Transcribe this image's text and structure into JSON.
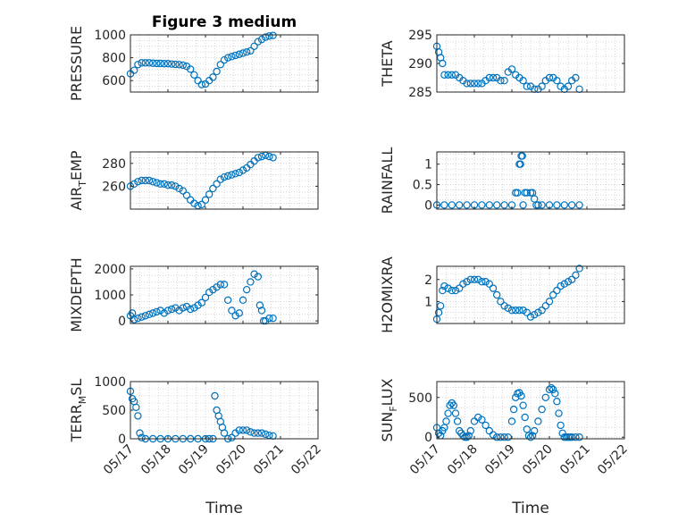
{
  "figure": {
    "title": "Figure 3 medium",
    "xlabel": "Time",
    "x_tick_labels": [
      "05/17",
      "05/18",
      "05/19",
      "05/20",
      "05/21",
      "05/22"
    ]
  },
  "chart_data": [
    {
      "type": "scatter",
      "marker": "o",
      "color": "#0072BD",
      "ylabel_main": "PRESSURE",
      "ylabel_sub": "",
      "ylabel_tail": "",
      "ylim": [
        500,
        1000
      ],
      "yticks": [
        600,
        800,
        1000
      ],
      "xlim": [
        0,
        5
      ],
      "grid": true,
      "x": [
        0.0,
        0.1,
        0.2,
        0.3,
        0.4,
        0.5,
        0.6,
        0.7,
        0.8,
        0.9,
        1.0,
        1.1,
        1.2,
        1.3,
        1.4,
        1.5,
        1.6,
        1.7,
        1.8,
        1.9,
        2.0,
        2.1,
        2.2,
        2.3,
        2.4,
        2.5,
        2.6,
        2.7,
        2.8,
        2.9,
        3.0,
        3.1,
        3.2,
        3.3,
        3.4,
        3.5,
        3.6,
        3.7,
        3.8
      ],
      "y": [
        660,
        690,
        740,
        755,
        755,
        755,
        752,
        750,
        750,
        748,
        748,
        745,
        742,
        740,
        735,
        725,
        700,
        650,
        600,
        565,
        570,
        600,
        630,
        680,
        740,
        780,
        800,
        810,
        820,
        830,
        840,
        850,
        860,
        900,
        940,
        960,
        980,
        990,
        995
      ]
    },
    {
      "type": "scatter",
      "marker": "o",
      "color": "#0072BD",
      "ylabel_main": "THETA",
      "ylabel_sub": "",
      "ylabel_tail": "",
      "ylim": [
        285,
        295
      ],
      "yticks": [
        285,
        290,
        295
      ],
      "xlim": [
        0,
        5
      ],
      "grid": true,
      "x": [
        0.0,
        0.05,
        0.1,
        0.15,
        0.2,
        0.3,
        0.4,
        0.5,
        0.6,
        0.7,
        0.8,
        0.9,
        1.0,
        1.1,
        1.2,
        1.3,
        1.4,
        1.5,
        1.6,
        1.7,
        1.8,
        1.9,
        2.0,
        2.1,
        2.2,
        2.3,
        2.4,
        2.5,
        2.6,
        2.7,
        2.8,
        2.9,
        3.0,
        3.1,
        3.2,
        3.3,
        3.4,
        3.5,
        3.6,
        3.7,
        3.8
      ],
      "y": [
        293,
        292,
        291,
        290,
        288,
        288,
        288,
        288,
        287.5,
        287,
        286.5,
        286.5,
        286.5,
        286.5,
        286.5,
        287,
        287.5,
        287.5,
        287.5,
        287,
        287,
        288.5,
        289,
        288,
        287.5,
        287,
        286,
        286,
        285.5,
        285.5,
        286,
        287,
        287.5,
        287.5,
        287,
        286,
        285.5,
        286,
        287,
        287.5,
        285.5
      ]
    },
    {
      "type": "scatter",
      "marker": "o",
      "color": "#0072BD",
      "ylabel_main": "AIR",
      "ylabel_sub": "T",
      "ylabel_tail": "EMP",
      "ylim": [
        240,
        290
      ],
      "yticks": [
        260,
        280
      ],
      "xlim": [
        0,
        5
      ],
      "grid": true,
      "x": [
        0.0,
        0.1,
        0.2,
        0.3,
        0.4,
        0.5,
        0.6,
        0.7,
        0.8,
        0.9,
        1.0,
        1.1,
        1.2,
        1.3,
        1.4,
        1.5,
        1.6,
        1.7,
        1.8,
        1.9,
        2.0,
        2.1,
        2.2,
        2.3,
        2.4,
        2.5,
        2.6,
        2.7,
        2.8,
        2.9,
        3.0,
        3.1,
        3.2,
        3.3,
        3.4,
        3.5,
        3.6,
        3.7,
        3.8
      ],
      "y": [
        260,
        262,
        264,
        265,
        265,
        265,
        264,
        263,
        262,
        262,
        261,
        261,
        260,
        258,
        256,
        252,
        248,
        245,
        243,
        244,
        248,
        253,
        258,
        262,
        266,
        268,
        269,
        270,
        271,
        272,
        274,
        276,
        279,
        282,
        285,
        286,
        287,
        286,
        285
      ]
    },
    {
      "type": "scatter",
      "marker": "o",
      "color": "#0072BD",
      "ylabel_main": "RAINFALL",
      "ylabel_sub": "",
      "ylabel_tail": "",
      "ylim": [
        -0.1,
        1.3
      ],
      "yticks": [
        0,
        0.5,
        1
      ],
      "xlim": [
        0,
        5
      ],
      "grid": true,
      "x": [
        0.0,
        0.2,
        0.4,
        0.6,
        0.8,
        1.0,
        1.2,
        1.4,
        1.6,
        1.8,
        2.0,
        2.1,
        2.15,
        2.2,
        2.23,
        2.25,
        2.28,
        2.3,
        2.35,
        2.4,
        2.5,
        2.55,
        2.6,
        2.65,
        2.7,
        2.8,
        3.0,
        3.2,
        3.4,
        3.6,
        3.8
      ],
      "y": [
        0,
        0,
        0,
        0,
        0,
        0,
        0,
        0,
        0,
        0,
        0,
        0.3,
        0.3,
        1,
        1,
        1.2,
        1.2,
        0,
        0.3,
        0.3,
        0.3,
        0.3,
        0.15,
        0,
        0,
        0,
        0,
        0,
        0,
        0,
        0
      ]
    },
    {
      "type": "scatter",
      "marker": "o",
      "color": "#0072BD",
      "ylabel_main": "MIXDEPTH",
      "ylabel_sub": "",
      "ylabel_tail": "",
      "ylim": [
        -100,
        2100
      ],
      "yticks": [
        0,
        1000,
        2000
      ],
      "xlim": [
        0,
        5
      ],
      "grid": true,
      "x": [
        0.0,
        0.05,
        0.1,
        0.2,
        0.3,
        0.4,
        0.5,
        0.6,
        0.7,
        0.8,
        0.9,
        1.0,
        1.1,
        1.2,
        1.3,
        1.4,
        1.5,
        1.6,
        1.7,
        1.8,
        1.9,
        2.0,
        2.1,
        2.2,
        2.3,
        2.4,
        2.5,
        2.6,
        2.7,
        2.8,
        2.9,
        3.0,
        3.1,
        3.2,
        3.3,
        3.4,
        3.45,
        3.5,
        3.55,
        3.6,
        3.7,
        3.8
      ],
      "y": [
        200,
        300,
        50,
        100,
        150,
        200,
        250,
        300,
        350,
        400,
        300,
        400,
        450,
        500,
        400,
        500,
        550,
        450,
        500,
        600,
        700,
        900,
        1100,
        1200,
        1300,
        1400,
        1400,
        800,
        400,
        200,
        300,
        800,
        1200,
        1500,
        1800,
        1700,
        600,
        400,
        0,
        0,
        100,
        100
      ]
    },
    {
      "type": "scatter",
      "marker": "o",
      "color": "#0072BD",
      "ylabel_main": "H2OMIXRA",
      "ylabel_sub": "",
      "ylabel_tail": "",
      "ylim": [
        0,
        2.6
      ],
      "yticks": [
        1,
        2
      ],
      "xlim": [
        0,
        5
      ],
      "grid": true,
      "x": [
        0.0,
        0.05,
        0.1,
        0.15,
        0.2,
        0.3,
        0.4,
        0.5,
        0.6,
        0.7,
        0.8,
        0.9,
        1.0,
        1.1,
        1.2,
        1.3,
        1.4,
        1.5,
        1.6,
        1.7,
        1.8,
        1.9,
        2.0,
        2.1,
        2.2,
        2.3,
        2.4,
        2.5,
        2.6,
        2.7,
        2.8,
        2.9,
        3.0,
        3.1,
        3.2,
        3.3,
        3.4,
        3.5,
        3.6,
        3.7,
        3.8
      ],
      "y": [
        0.2,
        0.5,
        0.8,
        1.5,
        1.7,
        1.6,
        1.5,
        1.5,
        1.6,
        1.8,
        1.9,
        2.0,
        2.0,
        2.0,
        1.9,
        1.9,
        1.8,
        1.6,
        1.3,
        1.0,
        0.8,
        0.7,
        0.6,
        0.6,
        0.6,
        0.6,
        0.5,
        0.3,
        0.4,
        0.5,
        0.6,
        0.8,
        1.0,
        1.3,
        1.5,
        1.7,
        1.8,
        1.9,
        2.0,
        2.2,
        2.5
      ]
    },
    {
      "type": "scatter",
      "marker": "o",
      "color": "#0072BD",
      "ylabel_main": "TERR",
      "ylabel_sub": "M",
      "ylabel_tail": "SL",
      "ylim": [
        0,
        1000
      ],
      "yticks": [
        0,
        500,
        1000
      ],
      "xlim": [
        0,
        5
      ],
      "grid": true,
      "x": [
        0.0,
        0.05,
        0.1,
        0.15,
        0.2,
        0.25,
        0.3,
        0.4,
        0.6,
        0.8,
        1.0,
        1.2,
        1.4,
        1.6,
        1.8,
        2.0,
        2.1,
        2.2,
        2.25,
        2.3,
        2.35,
        2.4,
        2.45,
        2.5,
        2.6,
        2.7,
        2.8,
        2.9,
        3.0,
        3.1,
        3.2,
        3.3,
        3.4,
        3.5,
        3.6,
        3.7,
        3.8
      ],
      "y": [
        830,
        700,
        650,
        550,
        400,
        100,
        20,
        0,
        0,
        0,
        0,
        0,
        0,
        0,
        0,
        0,
        0,
        0,
        750,
        500,
        400,
        300,
        200,
        100,
        0,
        20,
        100,
        150,
        150,
        150,
        120,
        100,
        100,
        100,
        80,
        60,
        50
      ]
    },
    {
      "type": "scatter",
      "marker": "o",
      "color": "#0072BD",
      "ylabel_main": "SUN",
      "ylabel_sub": "F",
      "ylabel_tail": "LUX",
      "ylim": [
        -20,
        700
      ],
      "yticks": [
        0,
        500
      ],
      "xlim": [
        0,
        5
      ],
      "grid": true,
      "x": [
        0.0,
        0.05,
        0.1,
        0.15,
        0.2,
        0.25,
        0.3,
        0.35,
        0.4,
        0.45,
        0.5,
        0.55,
        0.6,
        0.65,
        0.7,
        0.75,
        0.8,
        0.85,
        0.9,
        1.0,
        1.1,
        1.2,
        1.3,
        1.4,
        1.5,
        1.6,
        1.7,
        1.8,
        1.9,
        2.0,
        2.05,
        2.1,
        2.15,
        2.2,
        2.25,
        2.3,
        2.35,
        2.4,
        2.45,
        2.5,
        2.55,
        2.6,
        2.7,
        2.8,
        2.9,
        3.0,
        3.05,
        3.1,
        3.15,
        3.2,
        3.25,
        3.3,
        3.35,
        3.4,
        3.45,
        3.5,
        3.55,
        3.6,
        3.7,
        3.8
      ],
      "y": [
        120,
        50,
        20,
        80,
        120,
        200,
        300,
        400,
        430,
        400,
        300,
        200,
        80,
        50,
        20,
        0,
        0,
        20,
        80,
        200,
        250,
        220,
        150,
        80,
        30,
        0,
        0,
        0,
        0,
        200,
        350,
        500,
        550,
        560,
        520,
        400,
        250,
        100,
        20,
        0,
        20,
        80,
        200,
        350,
        500,
        600,
        620,
        600,
        550,
        450,
        300,
        150,
        50,
        0,
        0,
        0,
        0,
        0,
        0,
        0
      ]
    }
  ]
}
